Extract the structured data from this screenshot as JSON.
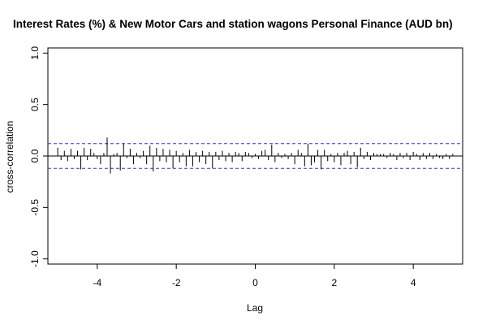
{
  "chart_data": {
    "type": "bar",
    "title": "Interest Rates (%) & New Motor Cars and station wagons Personal Finance (AUD bn)",
    "xlabel": "Lag",
    "ylabel": "cross-correlation",
    "xlim": [
      -5.25,
      5.25
    ],
    "ylim": [
      -1.05,
      1.05
    ],
    "xticks": [
      -4,
      -2,
      0,
      2,
      4
    ],
    "yticks": [
      -1.0,
      -0.5,
      0.0,
      0.5,
      1.0
    ],
    "xtick_labels": [
      "-4",
      "-2",
      "0",
      "2",
      "4"
    ],
    "ytick_labels": [
      "-1.0",
      "-0.5",
      "0.0",
      "0.5",
      "1.0"
    ],
    "confidence_bounds": [
      0.12,
      -0.12
    ],
    "series": [
      {
        "lags_start": -5.0,
        "lag_step": 0.0833333,
        "values": [
          0.08,
          -0.04,
          0.05,
          -0.05,
          0.07,
          -0.03,
          0.05,
          -0.13,
          0.08,
          -0.04,
          0.07,
          0.03,
          -0.03,
          -0.08,
          0.03,
          0.18,
          -0.17,
          0.02,
          0.03,
          -0.14,
          0.12,
          -0.02,
          0.07,
          -0.08,
          0.03,
          -0.02,
          0.05,
          -0.08,
          0.1,
          -0.15,
          0.08,
          -0.05,
          0.07,
          -0.06,
          0.06,
          -0.12,
          0.05,
          -0.06,
          0.03,
          -0.1,
          0.06,
          -0.1,
          0.04,
          -0.06,
          0.05,
          -0.08,
          0.04,
          -0.12,
          0.04,
          -0.04,
          0.05,
          -0.05,
          0.03,
          -0.06,
          0.04,
          0.03,
          -0.05,
          0.04,
          0.03,
          -0.02,
          0.02,
          -0.03,
          0.05,
          0.06,
          -0.04,
          0.11,
          -0.06,
          0.03,
          -0.02,
          0.02,
          -0.03,
          0.03,
          -0.08,
          0.06,
          0.03,
          -0.1,
          0.12,
          -0.09,
          -0.06,
          0.06,
          -0.13,
          0.06,
          -0.05,
          0.02,
          -0.06,
          0.03,
          -0.09,
          0.03,
          0.05,
          -0.08,
          0.04,
          -0.11,
          0.08,
          -0.03,
          0.04,
          -0.04,
          0.03,
          0.02,
          0.02,
          0.02,
          -0.02,
          0.03,
          0.02,
          -0.04,
          0.03,
          -0.02,
          0.03,
          -0.04,
          0.04,
          0.02,
          -0.04,
          0.03,
          -0.03,
          0.03,
          -0.03,
          0.02,
          -0.02,
          -0.03,
          0.02,
          -0.03,
          0.02
        ]
      }
    ],
    "colors": {
      "bars": "#000000",
      "zero_line": "#000000",
      "confidence_lines": "#3333cc",
      "frame": "#000000",
      "background": "#ffffff"
    },
    "grid": false,
    "legend": "none"
  }
}
